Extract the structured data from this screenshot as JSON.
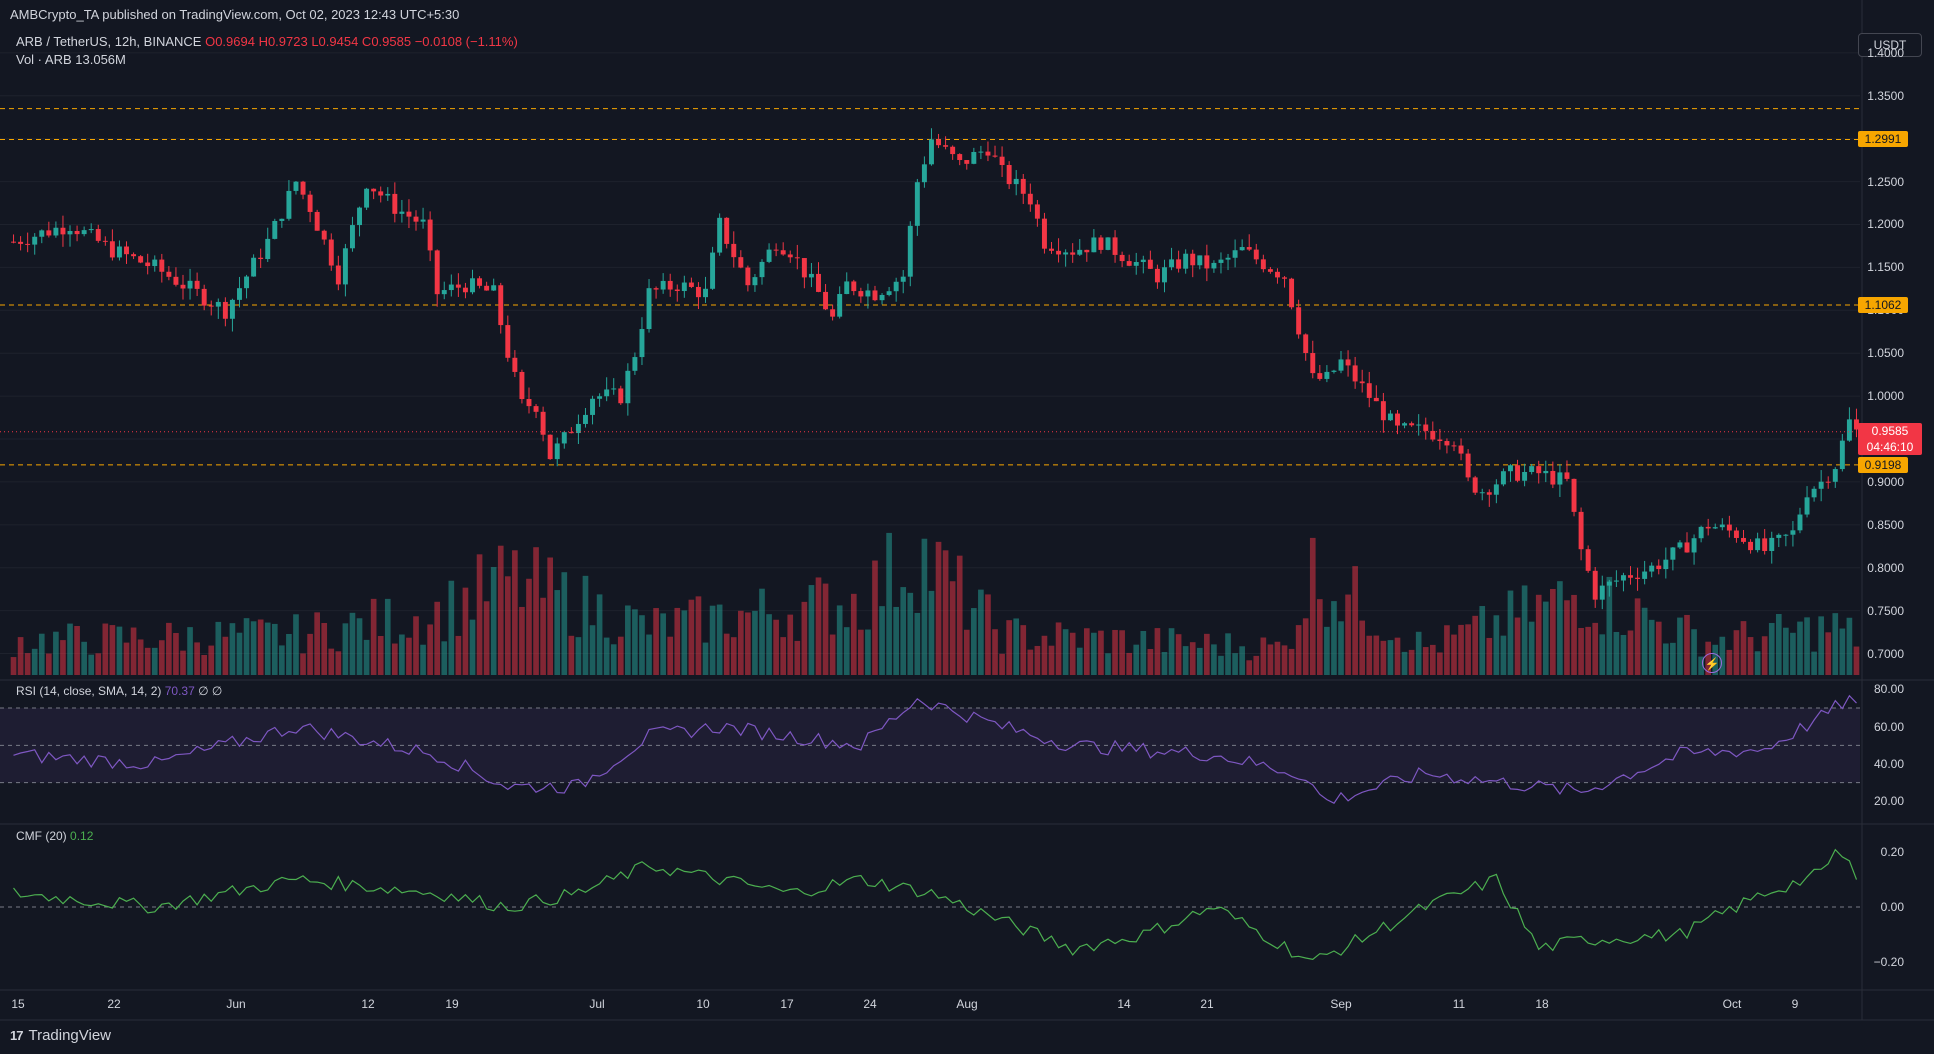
{
  "header": {
    "published": "AMBCrypto_TA published on TradingView.com, Oct 02, 2023 12:43 UTC+5:30",
    "symbol": "ARB / TetherUS, 12h, BINANCE",
    "ohlc": "O0.9694  H0.9723  L0.9454  C0.9585  −0.0108 (−1.11%)",
    "vol_label": "Vol · ARB",
    "vol_value": "13.056M"
  },
  "currency_button": "USDT",
  "price_axis": [
    "1.4000",
    "1.3500",
    "1.3000",
    "1.2500",
    "1.2000",
    "1.1500",
    "1.1000",
    "1.0500",
    "1.0000",
    "0.9500",
    "0.9000",
    "0.8500",
    "0.8000",
    "0.7500",
    "0.7000"
  ],
  "levels": [
    "1.2991",
    "1.1062",
    "0.9198"
  ],
  "last_price": {
    "value": "0.9585",
    "countdown": "04:46:10"
  },
  "rsi": {
    "label": "RSI (14, close, SMA, 14, 2)",
    "value": "70.37",
    "extra": "∅  ∅",
    "ticks": [
      "80.00",
      "60.00",
      "40.00",
      "20.00"
    ]
  },
  "cmf": {
    "label": "CMF (20)",
    "value": "0.12",
    "ticks": [
      "0.20",
      "0.00",
      "−0.20"
    ]
  },
  "time_axis": [
    "15",
    "22",
    "Jun",
    "12",
    "19",
    "Jul",
    "10",
    "17",
    "24",
    "Aug",
    "14",
    "21",
    "Sep",
    "11",
    "18",
    "Oct",
    "9"
  ],
  "footer": {
    "brand": "TradingView",
    "logo": "17"
  },
  "colors": {
    "up": "#26a69a",
    "down": "#f23645",
    "level": "#f7a600",
    "rsi": "#7e57c2",
    "cmf": "#4caf50",
    "bg": "#131722"
  },
  "chart_data": {
    "type": "candlestick",
    "interval": "12h",
    "price_axis_ticks": [
      1.4,
      1.35,
      1.3,
      1.25,
      1.2,
      1.15,
      1.1,
      1.05,
      1.0,
      0.95,
      0.9,
      0.85,
      0.8,
      0.75,
      0.7
    ],
    "horizontal_levels": [
      1.335,
      1.2991,
      1.1062,
      0.9198
    ],
    "close_path": [
      [
        0,
        1.18
      ],
      [
        8,
        1.2
      ],
      [
        14,
        1.17
      ],
      [
        20,
        1.15
      ],
      [
        26,
        1.12
      ],
      [
        30,
        1.1
      ],
      [
        36,
        1.18
      ],
      [
        40,
        1.25
      ],
      [
        42,
        1.22
      ],
      [
        46,
        1.14
      ],
      [
        50,
        1.25
      ],
      [
        54,
        1.22
      ],
      [
        58,
        1.2
      ],
      [
        60,
        1.12
      ],
      [
        64,
        1.13
      ],
      [
        68,
        1.12
      ],
      [
        70,
        1.05
      ],
      [
        72,
        0.99
      ],
      [
        74,
        0.99
      ],
      [
        76,
        0.93
      ],
      [
        78,
        0.95
      ],
      [
        82,
        1.0
      ],
      [
        86,
        1.0
      ],
      [
        88,
        1.05
      ],
      [
        90,
        1.12
      ],
      [
        94,
        1.13
      ],
      [
        98,
        1.12
      ],
      [
        100,
        1.2
      ],
      [
        104,
        1.13
      ],
      [
        108,
        1.18
      ],
      [
        110,
        1.17
      ],
      [
        114,
        1.12
      ],
      [
        116,
        1.09
      ],
      [
        118,
        1.13
      ],
      [
        122,
        1.12
      ],
      [
        126,
        1.14
      ],
      [
        128,
        1.25
      ],
      [
        130,
        1.3
      ],
      [
        134,
        1.27
      ],
      [
        138,
        1.29
      ],
      [
        140,
        1.26
      ],
      [
        144,
        1.23
      ],
      [
        146,
        1.18
      ],
      [
        150,
        1.17
      ],
      [
        154,
        1.18
      ],
      [
        158,
        1.16
      ],
      [
        162,
        1.14
      ],
      [
        166,
        1.16
      ],
      [
        170,
        1.15
      ],
      [
        174,
        1.17
      ],
      [
        176,
        1.16
      ],
      [
        180,
        1.14
      ],
      [
        182,
        1.08
      ],
      [
        184,
        1.02
      ],
      [
        186,
        1.02
      ],
      [
        188,
        1.04
      ],
      [
        192,
        1.0
      ],
      [
        196,
        0.96
      ],
      [
        200,
        0.96
      ],
      [
        204,
        0.95
      ],
      [
        206,
        0.9
      ],
      [
        208,
        0.89
      ],
      [
        212,
        0.91
      ],
      [
        216,
        0.91
      ],
      [
        220,
        0.9
      ],
      [
        222,
        0.82
      ],
      [
        224,
        0.77
      ],
      [
        228,
        0.79
      ],
      [
        232,
        0.8
      ],
      [
        236,
        0.82
      ],
      [
        240,
        0.85
      ],
      [
        244,
        0.84
      ],
      [
        248,
        0.82
      ],
      [
        252,
        0.84
      ],
      [
        254,
        0.89
      ],
      [
        256,
        0.9
      ],
      [
        258,
        0.92
      ],
      [
        260,
        0.97
      ],
      [
        261,
        0.9585
      ]
    ],
    "volume_path": [
      [
        0,
        0.25
      ],
      [
        40,
        0.3
      ],
      [
        60,
        0.45
      ],
      [
        70,
        0.7
      ],
      [
        90,
        0.35
      ],
      [
        120,
        0.55
      ],
      [
        128,
        0.9
      ],
      [
        140,
        0.3
      ],
      [
        180,
        0.2
      ],
      [
        184,
        0.75
      ],
      [
        200,
        0.2
      ],
      [
        222,
        0.6
      ],
      [
        240,
        0.25
      ],
      [
        258,
        0.35
      ],
      [
        261,
        0.28
      ]
    ],
    "rsi_path": [
      [
        0,
        45
      ],
      [
        20,
        40
      ],
      [
        40,
        60
      ],
      [
        60,
        45
      ],
      [
        70,
        28
      ],
      [
        80,
        28
      ],
      [
        90,
        55
      ],
      [
        100,
        60
      ],
      [
        110,
        55
      ],
      [
        120,
        50
      ],
      [
        128,
        75
      ],
      [
        140,
        60
      ],
      [
        150,
        50
      ],
      [
        170,
        45
      ],
      [
        182,
        35
      ],
      [
        186,
        20
      ],
      [
        200,
        35
      ],
      [
        222,
        25
      ],
      [
        236,
        45
      ],
      [
        248,
        48
      ],
      [
        256,
        65
      ],
      [
        260,
        75
      ],
      [
        261,
        70.37
      ]
    ],
    "rsi_range": [
      10,
      85
    ],
    "cmf_path": [
      [
        0,
        0.05
      ],
      [
        20,
        0.0
      ],
      [
        40,
        0.1
      ],
      [
        60,
        0.05
      ],
      [
        70,
        0.0
      ],
      [
        80,
        0.05
      ],
      [
        90,
        0.15
      ],
      [
        100,
        0.1
      ],
      [
        110,
        0.05
      ],
      [
        120,
        0.1
      ],
      [
        130,
        0.05
      ],
      [
        140,
        -0.05
      ],
      [
        150,
        -0.15
      ],
      [
        160,
        -0.1
      ],
      [
        170,
        0.0
      ],
      [
        184,
        -0.2
      ],
      [
        200,
        0.0
      ],
      [
        210,
        0.1
      ],
      [
        216,
        -0.15
      ],
      [
        222,
        -0.12
      ],
      [
        236,
        -0.1
      ],
      [
        248,
        0.05
      ],
      [
        256,
        0.12
      ],
      [
        258,
        0.2
      ],
      [
        260,
        0.15
      ],
      [
        261,
        0.12
      ]
    ],
    "cmf_range": [
      -0.3,
      0.3
    ]
  }
}
